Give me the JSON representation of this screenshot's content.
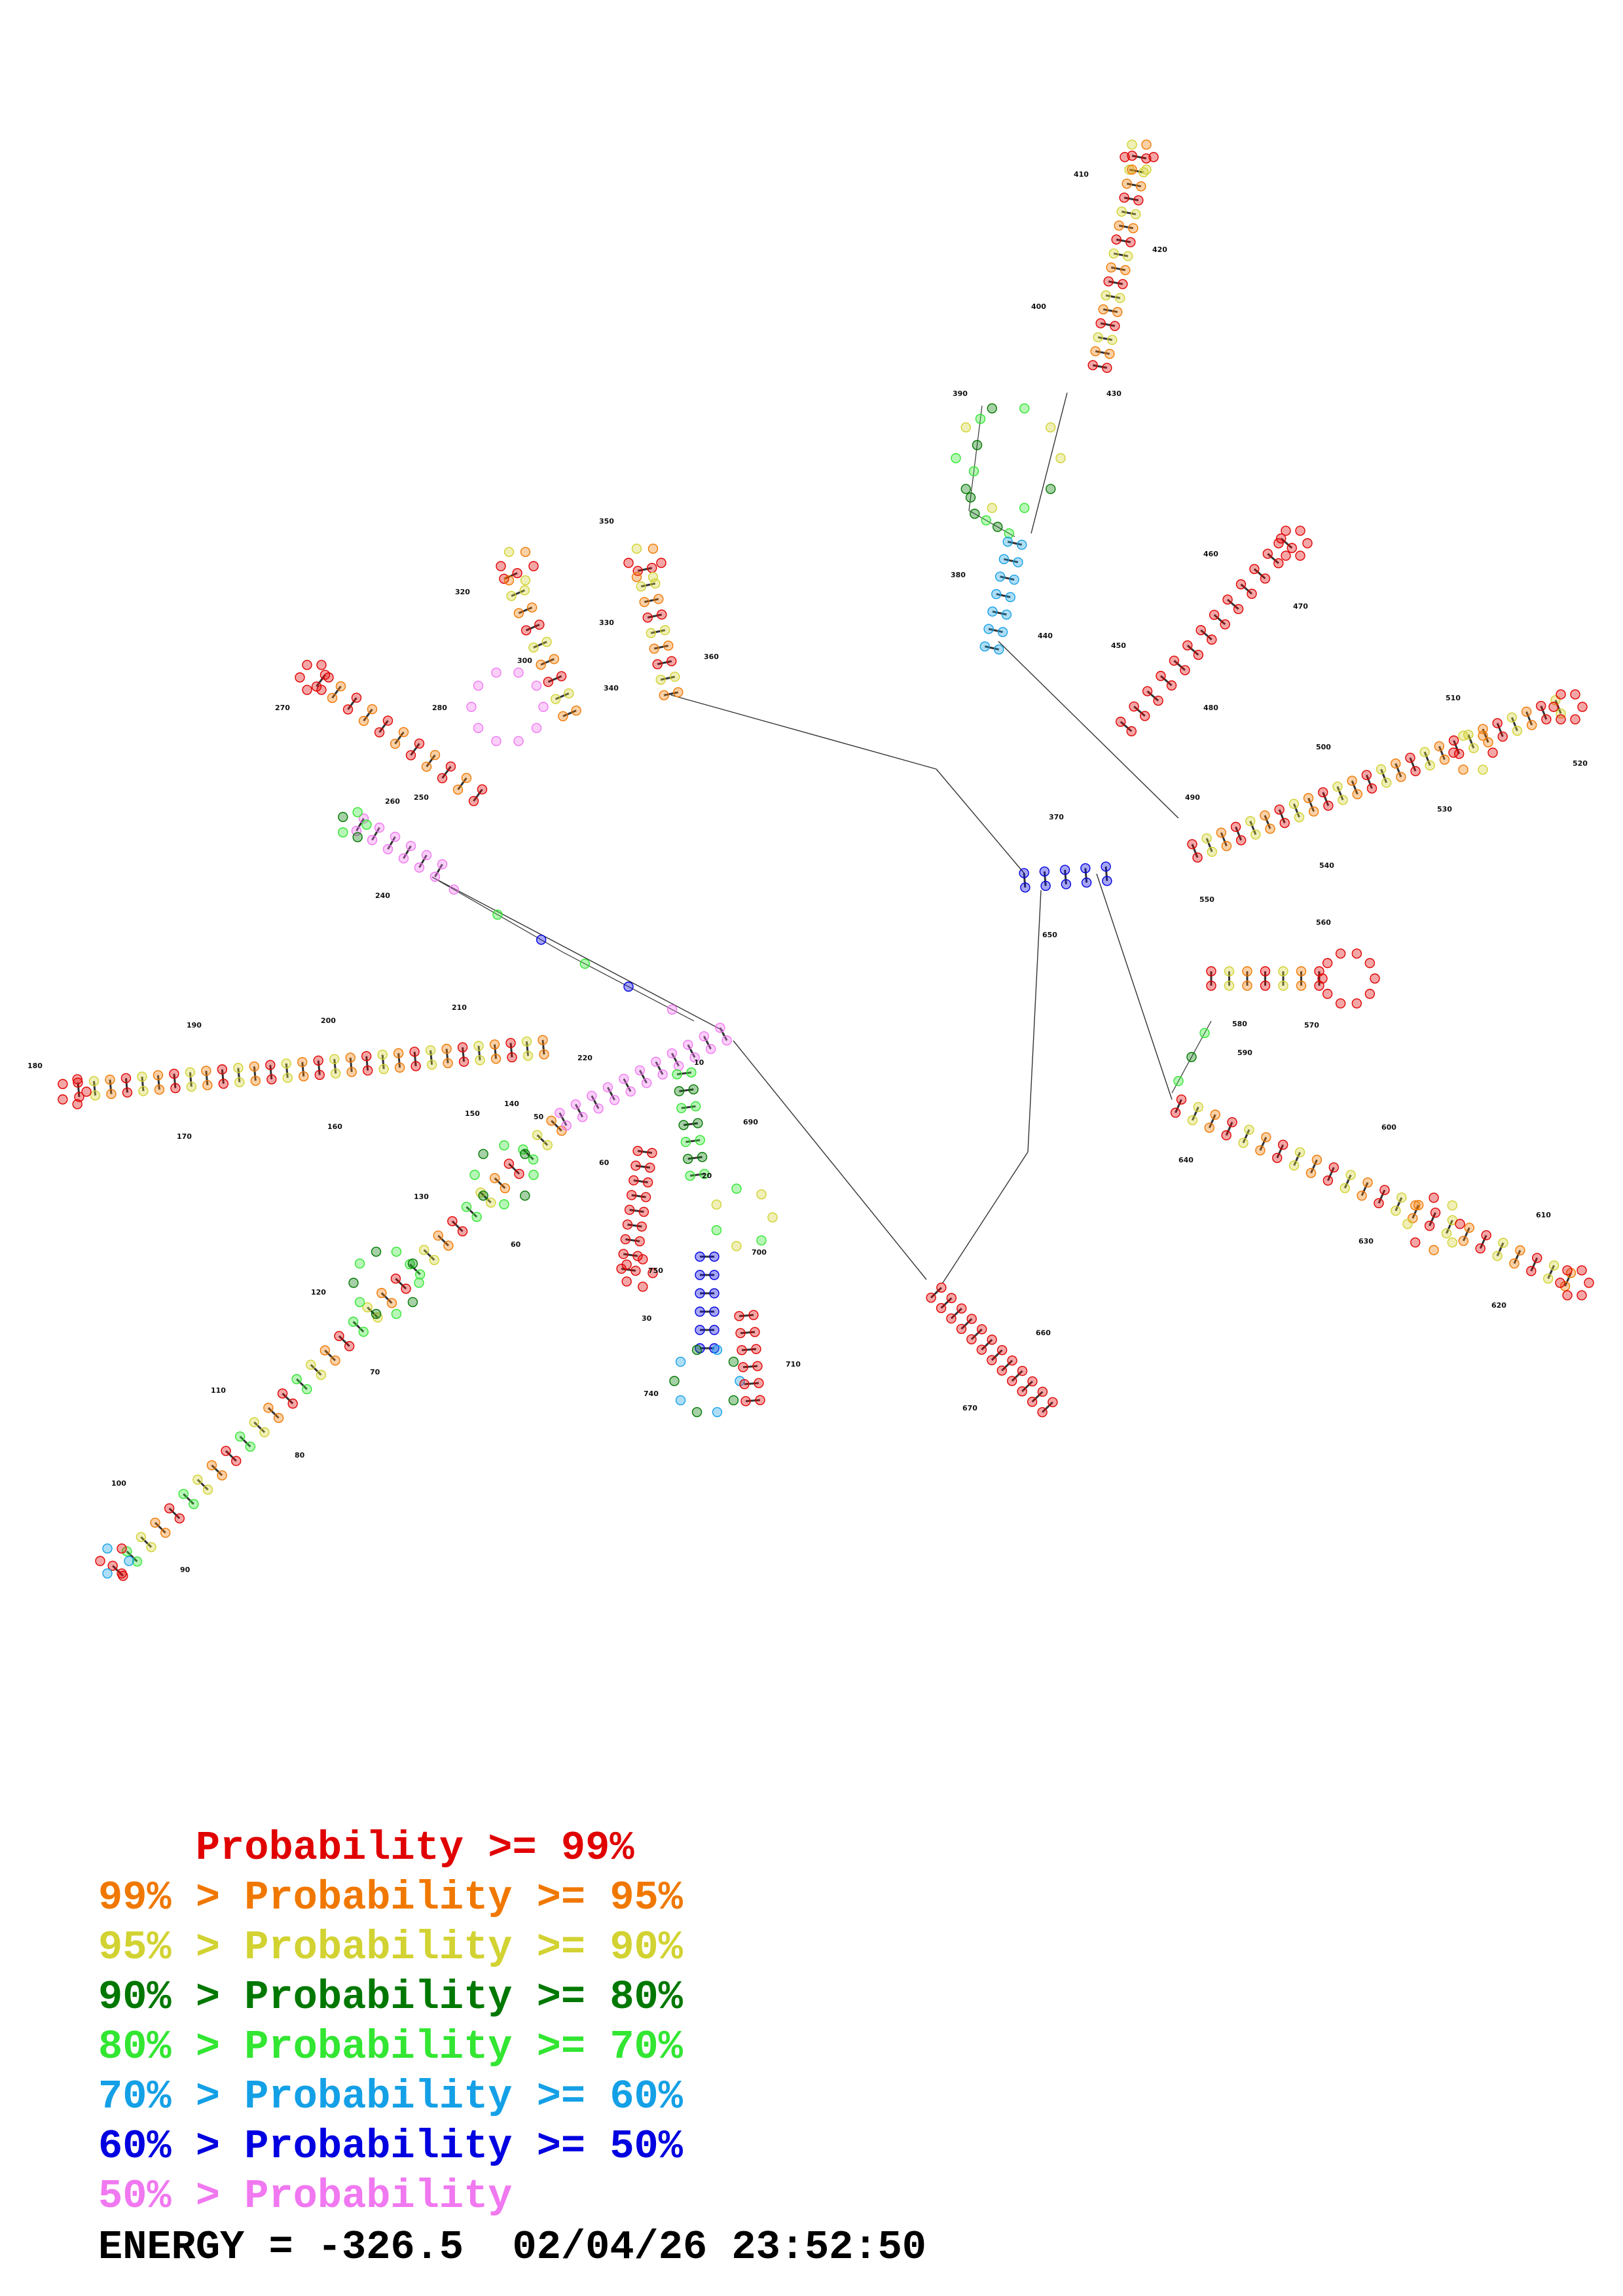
{
  "diagram": {
    "positions": [
      "410",
      "420",
      "400",
      "390",
      "430",
      "380",
      "440",
      "450",
      "460",
      "470",
      "480",
      "490",
      "500",
      "510",
      "520",
      "530",
      "540",
      "550",
      "560",
      "570",
      "580",
      "590",
      "600",
      "610",
      "620",
      "630",
      "640",
      "650",
      "660",
      "670",
      "370",
      "350",
      "320",
      "330",
      "360",
      "340",
      "300",
      "270",
      "280",
      "260",
      "250",
      "240",
      "180",
      "190",
      "200",
      "210",
      "220",
      "170",
      "160",
      "150",
      "140",
      "50",
      "10",
      "690",
      "60",
      "20",
      "700",
      "130",
      "60",
      "120",
      "70",
      "110",
      "80",
      "100",
      "90",
      "30",
      "750",
      "740",
      "710"
    ],
    "colors": {
      "red": "#e00000",
      "orange": "#f07800",
      "yellow": "#d2d232",
      "darkgreen": "#007800",
      "green": "#32e632",
      "cyan": "#14a0e6",
      "blue": "#0000e0",
      "pink": "#f078f0"
    }
  },
  "legend": [
    {
      "prefix": "    ",
      "text": "Probability >= 99%",
      "color": "#e00000"
    },
    {
      "prefix": "99% > ",
      "text": "Probability >= 95%",
      "color": "#f07800"
    },
    {
      "prefix": "95% > ",
      "text": "Probability >= 90%",
      "color": "#d2d232"
    },
    {
      "prefix": "90% > ",
      "text": "Probability >= 80%",
      "color": "#007800"
    },
    {
      "prefix": "80% > ",
      "text": "Probability >= 70%",
      "color": "#32e632"
    },
    {
      "prefix": "70% > ",
      "text": "Probability >= 60%",
      "color": "#14a0e6"
    },
    {
      "prefix": "60% > ",
      "text": "Probability >= 50%",
      "color": "#0000e0"
    },
    {
      "prefix": "50% > ",
      "text": "Probability",
      "color": "#f078f0"
    }
  ],
  "footer": "ENERGY = -326.5  02/04/26 23:52:50"
}
